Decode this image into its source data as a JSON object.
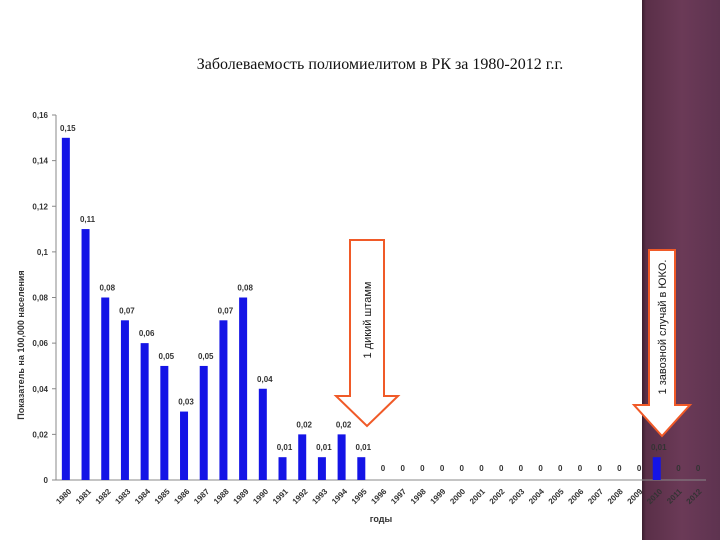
{
  "slide": {
    "title": "Заболеваемость полиомиелитом в РК за 1980-2012 г.г."
  },
  "colors": {
    "bar": "#1414e6",
    "arrow": "#f05a28",
    "band": "#6b3a57"
  },
  "chart_data": {
    "type": "bar",
    "title": "Заболеваемость полиомиелитом в РК за 1980-2012 г.г.",
    "xlabel": "годы",
    "ylabel": "Показатель на 100,000 населения",
    "ylim": [
      0,
      0.16
    ],
    "yticks": [
      "0",
      "0,02",
      "0,04",
      "0,06",
      "0,08",
      "0,1",
      "0,12",
      "0,14",
      "0,16"
    ],
    "grid": false,
    "categories": [
      "1980",
      "1981",
      "1982",
      "1983",
      "1984",
      "1985",
      "1986",
      "1987",
      "1988",
      "1989",
      "1990",
      "1991",
      "1992",
      "1993",
      "1994",
      "1995",
      "1996",
      "1997",
      "1998",
      "1999",
      "2000",
      "2001",
      "2002",
      "2003",
      "2004",
      "2005",
      "2006",
      "2007",
      "2008",
      "2009",
      "2010",
      "2011",
      "2012"
    ],
    "values": [
      0.15,
      0.11,
      0.08,
      0.07,
      0.06,
      0.05,
      0.03,
      0.05,
      0.07,
      0.08,
      0.04,
      0.01,
      0.02,
      0.01,
      0.02,
      0.01,
      0,
      0,
      0,
      0,
      0,
      0,
      0,
      0,
      0,
      0,
      0,
      0,
      0,
      0,
      0.01,
      0,
      0
    ],
    "data_labels": [
      "0,15",
      "0,11",
      "0,08",
      "0,07",
      "0,06",
      "0,05",
      "0,03",
      "0,05",
      "0,07",
      "0,08",
      "0,04",
      "0,01",
      "0,02",
      "0,01",
      "0,02",
      "0,01",
      "0",
      "0",
      "0",
      "0",
      "0",
      "0",
      "0",
      "0",
      "0",
      "0",
      "0",
      "0",
      "0",
      "0",
      "0,01",
      "0",
      "0"
    ],
    "annotations": [
      {
        "text": "1 дикий штамм",
        "category": "1995"
      },
      {
        "text": "1 завозной случай в ЮКО.",
        "category": "2010"
      }
    ]
  }
}
